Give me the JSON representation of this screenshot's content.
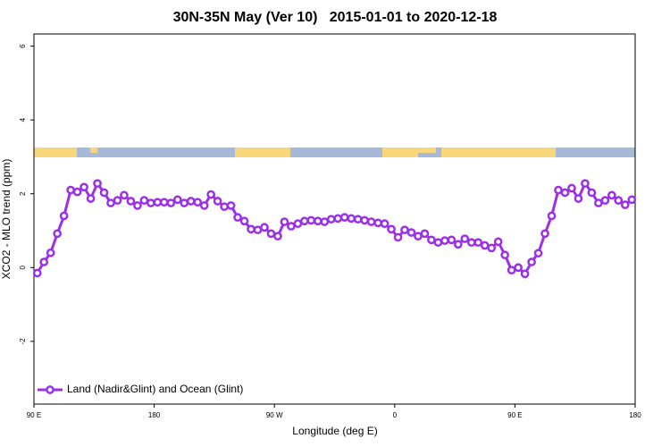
{
  "chart_data": {
    "type": "line",
    "title": "30N-35N May (Ver 10)   2015-01-01 to 2020-12-18",
    "x_label": "Longitude (deg E)",
    "y_label": "XCO2 - MLO trend (ppm)",
    "xlim": [
      90,
      540
    ],
    "ylim": [
      -3.7,
      6.33
    ],
    "xticks": [
      {
        "value": 90,
        "label": "90 E"
      },
      {
        "value": 180,
        "label": "180"
      },
      {
        "value": 270,
        "label": "90 W"
      },
      {
        "value": 360,
        "label": "0"
      },
      {
        "value": 450,
        "label": "90 E"
      },
      {
        "value": 540,
        "label": "180"
      }
    ],
    "yticks": [
      -2,
      0,
      2,
      4,
      6
    ],
    "grid": false,
    "legend": "bottom-left",
    "x": [
      92.5,
      97.5,
      102.5,
      107.5,
      112.5,
      117.5,
      122.5,
      127.5,
      132.5,
      137.5,
      142.5,
      147.5,
      152.5,
      157.5,
      162.5,
      167.5,
      172.5,
      177.5,
      182.5,
      187.5,
      192.5,
      197.5,
      202.5,
      207.5,
      212.5,
      217.5,
      222.5,
      227.5,
      232.5,
      237.5,
      242.5,
      247.5,
      252.5,
      257.5,
      262.5,
      267.5,
      272.5,
      277.5,
      282.5,
      287.5,
      292.5,
      297.5,
      302.5,
      307.5,
      312.5,
      317.5,
      322.5,
      327.5,
      332.5,
      337.5,
      342.5,
      347.5,
      352.5,
      357.5,
      362.5,
      367.5,
      372.5,
      377.5,
      382.5,
      387.5,
      392.5,
      397.5,
      402.5,
      407.5,
      412.5,
      417.5,
      422.5,
      427.5,
      432.5,
      437.5,
      442.5,
      447.5,
      452.5,
      457.5,
      462.5,
      467.5,
      472.5,
      477.5,
      482.5,
      487.5,
      492.5,
      497.5,
      502.5,
      507.5,
      512.5,
      517.5,
      522.5,
      527.5,
      532.5,
      537.5
    ],
    "series": [
      {
        "name": "Land (Nadir&Glint) and Ocean (Glint)",
        "color": "#9b30e8",
        "values": [
          -0.15,
          0.15,
          0.4,
          0.92,
          1.4,
          2.1,
          2.05,
          2.18,
          1.87,
          2.28,
          2.03,
          1.75,
          1.82,
          1.96,
          1.8,
          1.68,
          1.82,
          1.75,
          1.77,
          1.77,
          1.75,
          1.84,
          1.75,
          1.8,
          1.77,
          1.68,
          1.98,
          1.8,
          1.65,
          1.68,
          1.36,
          1.26,
          1.04,
          1.02,
          1.09,
          0.92,
          0.85,
          1.24,
          1.12,
          1.19,
          1.26,
          1.28,
          1.26,
          1.24,
          1.31,
          1.33,
          1.36,
          1.33,
          1.31,
          1.28,
          1.24,
          1.21,
          1.19,
          1.04,
          0.82,
          1.02,
          0.95,
          0.85,
          0.92,
          0.75,
          0.68,
          0.73,
          0.75,
          0.63,
          0.78,
          0.68,
          0.68,
          0.6,
          0.53,
          0.7,
          0.34,
          -0.07,
          0,
          -0.17,
          0.15,
          0.39,
          0.92,
          1.4,
          2.1,
          2.03,
          2.15,
          1.87,
          2.28,
          2.03,
          1.75,
          1.82,
          1.96,
          1.82,
          1.7,
          1.84
        ]
      }
    ]
  }
}
